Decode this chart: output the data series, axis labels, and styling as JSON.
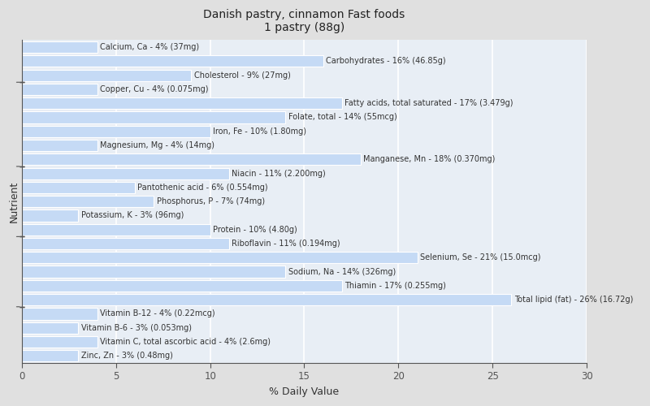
{
  "title_line1": "Danish pastry, cinnamon Fast foods",
  "title_line2": "1 pastry (88g)",
  "xlabel": "% Daily Value",
  "ylabel": "Nutrient",
  "xlim": [
    0,
    30
  ],
  "fig_background": "#e0e0e0",
  "plot_background": "#e8eef5",
  "bar_color": "#c5daf5",
  "bar_edge_color": "#ffffff",
  "nutrients": [
    {
      "label": "Calcium, Ca - 4% (37mg)",
      "value": 4
    },
    {
      "label": "Carbohydrates - 16% (46.85g)",
      "value": 16
    },
    {
      "label": "Cholesterol - 9% (27mg)",
      "value": 9
    },
    {
      "label": "Copper, Cu - 4% (0.075mg)",
      "value": 4
    },
    {
      "label": "Fatty acids, total saturated - 17% (3.479g)",
      "value": 17
    },
    {
      "label": "Folate, total - 14% (55mcg)",
      "value": 14
    },
    {
      "label": "Iron, Fe - 10% (1.80mg)",
      "value": 10
    },
    {
      "label": "Magnesium, Mg - 4% (14mg)",
      "value": 4
    },
    {
      "label": "Manganese, Mn - 18% (0.370mg)",
      "value": 18
    },
    {
      "label": "Niacin - 11% (2.200mg)",
      "value": 11
    },
    {
      "label": "Pantothenic acid - 6% (0.554mg)",
      "value": 6
    },
    {
      "label": "Phosphorus, P - 7% (74mg)",
      "value": 7
    },
    {
      "label": "Potassium, K - 3% (96mg)",
      "value": 3
    },
    {
      "label": "Protein - 10% (4.80g)",
      "value": 10
    },
    {
      "label": "Riboflavin - 11% (0.194mg)",
      "value": 11
    },
    {
      "label": "Selenium, Se - 21% (15.0mcg)",
      "value": 21
    },
    {
      "label": "Sodium, Na - 14% (326mg)",
      "value": 14
    },
    {
      "label": "Thiamin - 17% (0.255mg)",
      "value": 17
    },
    {
      "label": "Total lipid (fat) - 26% (16.72g)",
      "value": 26
    },
    {
      "label": "Vitamin B-12 - 4% (0.22mcg)",
      "value": 4
    },
    {
      "label": "Vitamin B-6 - 3% (0.053mg)",
      "value": 3
    },
    {
      "label": "Vitamin C, total ascorbic acid - 4% (2.6mg)",
      "value": 4
    },
    {
      "label": "Zinc, Zn - 3% (0.48mg)",
      "value": 3
    }
  ],
  "grid_color": "#ffffff",
  "spine_color": "#555555",
  "tick_color": "#555555",
  "label_fontsize": 7.0,
  "title_fontsize": 10,
  "axis_label_fontsize": 9,
  "bar_height": 0.82,
  "group_boundaries_reversed": [
    3.5,
    8.5,
    13.5,
    19.5
  ]
}
